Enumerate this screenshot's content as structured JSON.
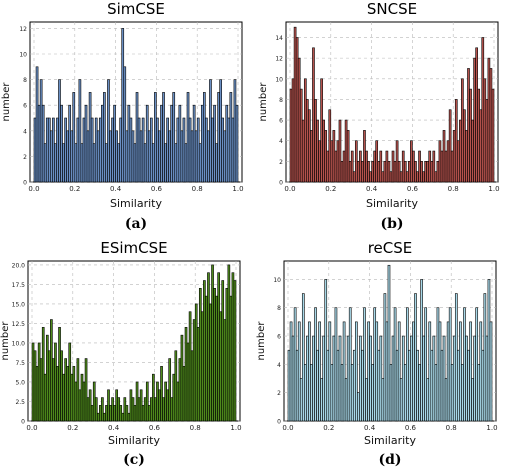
{
  "chart_data": [
    {
      "type": "bar",
      "title": "SimCSE",
      "xlabel": "Similarity",
      "ylabel": "number",
      "caption": "(a)",
      "bar_color": "#6a8fc4",
      "xlim": [
        0,
        1
      ],
      "ylim": [
        0,
        12.5
      ],
      "xticks": [
        "0.0",
        "0.2",
        "0.4",
        "0.6",
        "0.8",
        "1.0"
      ],
      "yticks": [
        "0",
        "2",
        "4",
        "6",
        "8",
        "10",
        "12"
      ],
      "grid": true,
      "bin_width": 0.01,
      "values": [
        5,
        9,
        6,
        8,
        6,
        3,
        5,
        5,
        4,
        5,
        3,
        5,
        8,
        6,
        3,
        5,
        4,
        6,
        4,
        7,
        3,
        5,
        8,
        3,
        5,
        6,
        4,
        7,
        5,
        3,
        5,
        4,
        5,
        6,
        7,
        3,
        8,
        4,
        5,
        6,
        4,
        3,
        5,
        12,
        9,
        4,
        6,
        5,
        4,
        3,
        7,
        5,
        4,
        5,
        3,
        6,
        4,
        5,
        3,
        7,
        5,
        4,
        6,
        7,
        3,
        5,
        4,
        6,
        7,
        3,
        5,
        6,
        4,
        5,
        3,
        7,
        5,
        4,
        6,
        4,
        5,
        3,
        6,
        7,
        5,
        4,
        8,
        5,
        6,
        3,
        7,
        8,
        5,
        4,
        6,
        5,
        7,
        5,
        8,
        6
      ]
    },
    {
      "type": "bar",
      "title": "SNCSE",
      "xlabel": "Similarity",
      "ylabel": "number",
      "caption": "(b)",
      "bar_color": "#b5524d",
      "xlim": [
        0,
        1
      ],
      "ylim": [
        0,
        15.5
      ],
      "xticks": [
        "0.0",
        "0.2",
        "0.4",
        "0.6",
        "0.8",
        "1.0"
      ],
      "yticks": [
        "0",
        "2",
        "4",
        "6",
        "8",
        "10",
        "12",
        "14"
      ],
      "grid": true,
      "bin_width": 0.01,
      "values": [
        9,
        10,
        15,
        14,
        12,
        9,
        6,
        10,
        8,
        7,
        5,
        13,
        8,
        6,
        4,
        10,
        6,
        5,
        3,
        7,
        4,
        5,
        3,
        4,
        6,
        2,
        3,
        6,
        5,
        2,
        3,
        1,
        4,
        2,
        3,
        2,
        5,
        3,
        2,
        1,
        2,
        3,
        4,
        2,
        3,
        1,
        2,
        3,
        2,
        1,
        3,
        2,
        4,
        2,
        1,
        3,
        2,
        1,
        2,
        4,
        3,
        2,
        1,
        3,
        2,
        1,
        2,
        2,
        3,
        2,
        3,
        1,
        2,
        4,
        3,
        5,
        3,
        4,
        7,
        3,
        5,
        8,
        4,
        6,
        10,
        7,
        5,
        11,
        9,
        6,
        12,
        13,
        9,
        7,
        14,
        10,
        8,
        12,
        11,
        9
      ]
    },
    {
      "type": "bar",
      "title": "ESimCSE",
      "xlabel": "Similarity",
      "ylabel": "number",
      "caption": "(c)",
      "bar_color": "#4e8a1c",
      "xlim": [
        0,
        1
      ],
      "ylim": [
        0,
        20.5
      ],
      "xticks": [
        "0.0",
        "0.2",
        "0.4",
        "0.6",
        "0.8",
        "1.0"
      ],
      "yticks": [
        "0",
        "2.5",
        "5.0",
        "7.5",
        "10.0",
        "12.5",
        "15.0",
        "17.5",
        "20.0"
      ],
      "grid": true,
      "bin_width": 0.01,
      "values": [
        10,
        9,
        7,
        10,
        8,
        12,
        6,
        11,
        9,
        13,
        8,
        10,
        7,
        12,
        9,
        6,
        8,
        7,
        10,
        6,
        7,
        5,
        8,
        4,
        6,
        5,
        8,
        3,
        4,
        2,
        5,
        3,
        1,
        2,
        3,
        1,
        2,
        4,
        2,
        3,
        2,
        4,
        3,
        2,
        1,
        3,
        2,
        1,
        4,
        3,
        2,
        5,
        3,
        4,
        2,
        3,
        5,
        2,
        3,
        6,
        3,
        5,
        4,
        7,
        3,
        5,
        4,
        8,
        3,
        6,
        9,
        5,
        8,
        11,
        7,
        12,
        10,
        14,
        9,
        13,
        15,
        12,
        17,
        14,
        18,
        16,
        19,
        15,
        20,
        17,
        16,
        19,
        14,
        18,
        13,
        17,
        20,
        16,
        19,
        18
      ]
    },
    {
      "type": "bar",
      "title": "reCSE",
      "xlabel": "Similarity",
      "ylabel": "number",
      "caption": "(d)",
      "bar_color": "#a8d8e8",
      "xlim": [
        0,
        1
      ],
      "ylim": [
        0,
        11.3
      ],
      "xticks": [
        "0.0",
        "0.2",
        "0.4",
        "0.6",
        "0.8",
        "1.0"
      ],
      "yticks": [
        "0",
        "2",
        "4",
        "6",
        "8",
        "10"
      ],
      "grid": true,
      "bin_width": 0.01,
      "values": [
        5,
        7,
        6,
        8,
        5,
        7,
        3,
        9,
        4,
        6,
        7,
        4,
        6,
        8,
        5,
        7,
        3,
        6,
        10,
        5,
        7,
        4,
        6,
        8,
        5,
        6,
        4,
        7,
        3,
        6,
        8,
        4,
        5,
        7,
        2,
        6,
        5,
        8,
        3,
        7,
        6,
        4,
        8,
        7,
        5,
        6,
        3,
        9,
        7,
        11,
        4,
        6,
        8,
        5,
        7,
        3,
        6,
        4,
        8,
        5,
        6,
        7,
        9,
        5,
        4,
        10,
        6,
        8,
        3,
        7,
        5,
        6,
        4,
        8,
        7,
        5,
        6,
        3,
        7,
        8,
        4,
        6,
        9,
        5,
        7,
        4,
        8,
        6,
        5,
        7,
        3,
        6,
        8,
        4,
        7,
        5,
        9,
        6,
        10,
        7
      ]
    }
  ]
}
